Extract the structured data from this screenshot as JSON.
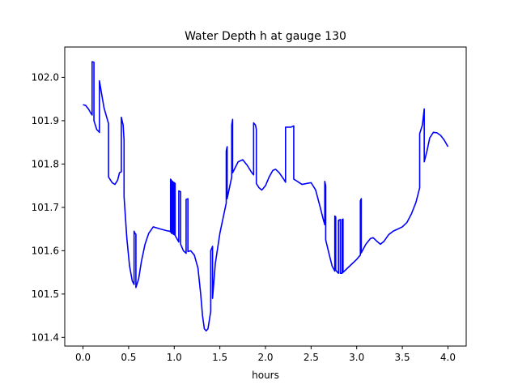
{
  "chart_data": {
    "type": "line",
    "title": "Water Depth h at gauge 130",
    "xlabel": "hours",
    "ylabel": "",
    "xlim": [
      -0.2,
      4.2
    ],
    "ylim": [
      101.38,
      102.07
    ],
    "xticks": [
      0.0,
      0.5,
      1.0,
      1.5,
      2.0,
      2.5,
      3.0,
      3.5,
      4.0
    ],
    "xtick_labels": [
      "0.0",
      "0.5",
      "1.0",
      "1.5",
      "2.0",
      "2.5",
      "3.0",
      "3.5",
      "4.0"
    ],
    "yticks": [
      101.4,
      101.5,
      101.6,
      101.7,
      101.8,
      101.9,
      102.0
    ],
    "ytick_labels": [
      "101.4",
      "101.5",
      "101.6",
      "101.7",
      "101.8",
      "101.9",
      "102.0"
    ],
    "grid": false,
    "series": [
      {
        "color": "#0000ff",
        "points": [
          [
            0.0,
            101.937
          ],
          [
            0.03,
            101.935
          ],
          [
            0.06,
            101.927
          ],
          [
            0.09,
            101.916
          ],
          [
            0.1,
            101.913
          ],
          [
            0.1,
            102.036
          ],
          [
            0.12,
            102.035
          ],
          [
            0.12,
            101.9
          ],
          [
            0.15,
            101.88
          ],
          [
            0.18,
            101.873
          ],
          [
            0.18,
            101.992
          ],
          [
            0.23,
            101.93
          ],
          [
            0.28,
            101.893
          ],
          [
            0.28,
            101.77
          ],
          [
            0.32,
            101.757
          ],
          [
            0.35,
            101.753
          ],
          [
            0.38,
            101.763
          ],
          [
            0.4,
            101.78
          ],
          [
            0.42,
            101.782
          ],
          [
            0.42,
            101.908
          ],
          [
            0.44,
            101.89
          ],
          [
            0.45,
            101.855
          ],
          [
            0.45,
            101.725
          ],
          [
            0.48,
            101.63
          ],
          [
            0.51,
            101.565
          ],
          [
            0.54,
            101.53
          ],
          [
            0.56,
            101.522
          ],
          [
            0.56,
            101.645
          ],
          [
            0.57,
            101.64
          ],
          [
            0.58,
            101.638
          ],
          [
            0.58,
            101.515
          ],
          [
            0.61,
            101.535
          ],
          [
            0.64,
            101.575
          ],
          [
            0.68,
            101.615
          ],
          [
            0.72,
            101.64
          ],
          [
            0.77,
            101.655
          ],
          [
            0.85,
            101.65
          ],
          [
            0.92,
            101.646
          ],
          [
            0.95,
            101.645
          ],
          [
            0.96,
            101.643
          ],
          [
            0.96,
            101.765
          ],
          [
            0.97,
            101.762
          ],
          [
            0.97,
            101.64
          ],
          [
            0.98,
            101.64
          ],
          [
            0.98,
            101.76
          ],
          [
            0.99,
            101.758
          ],
          [
            0.99,
            101.638
          ],
          [
            1.0,
            101.637
          ],
          [
            1.0,
            101.757
          ],
          [
            1.01,
            101.755
          ],
          [
            1.01,
            101.635
          ],
          [
            1.05,
            101.62
          ],
          [
            1.05,
            101.738
          ],
          [
            1.07,
            101.736
          ],
          [
            1.07,
            101.615
          ],
          [
            1.1,
            101.6
          ],
          [
            1.13,
            101.594
          ],
          [
            1.13,
            101.718
          ],
          [
            1.15,
            101.72
          ],
          [
            1.15,
            101.598
          ],
          [
            1.18,
            101.6
          ],
          [
            1.22,
            101.59
          ],
          [
            1.26,
            101.56
          ],
          [
            1.29,
            101.5
          ],
          [
            1.31,
            101.45
          ],
          [
            1.33,
            101.42
          ],
          [
            1.35,
            101.415
          ],
          [
            1.37,
            101.42
          ],
          [
            1.4,
            101.46
          ],
          [
            1.4,
            101.6
          ],
          [
            1.42,
            101.61
          ],
          [
            1.42,
            101.49
          ],
          [
            1.45,
            101.57
          ],
          [
            1.5,
            101.64
          ],
          [
            1.55,
            101.69
          ],
          [
            1.57,
            101.71
          ],
          [
            1.57,
            101.83
          ],
          [
            1.58,
            101.84
          ],
          [
            1.58,
            101.72
          ],
          [
            1.62,
            101.76
          ],
          [
            1.63,
            101.77
          ],
          [
            1.63,
            101.89
          ],
          [
            1.64,
            101.903
          ],
          [
            1.64,
            101.78
          ],
          [
            1.7,
            101.805
          ],
          [
            1.75,
            101.81
          ],
          [
            1.8,
            101.797
          ],
          [
            1.85,
            101.78
          ],
          [
            1.87,
            101.775
          ],
          [
            1.87,
            101.895
          ],
          [
            1.89,
            101.89
          ],
          [
            1.9,
            101.88
          ],
          [
            1.9,
            101.755
          ],
          [
            1.93,
            101.745
          ],
          [
            1.96,
            101.74
          ],
          [
            2.0,
            101.75
          ],
          [
            2.04,
            101.77
          ],
          [
            2.08,
            101.785
          ],
          [
            2.11,
            101.788
          ],
          [
            2.15,
            101.78
          ],
          [
            2.2,
            101.765
          ],
          [
            2.22,
            101.758
          ],
          [
            2.22,
            101.885
          ],
          [
            2.26,
            101.885
          ],
          [
            2.28,
            101.885
          ],
          [
            2.3,
            101.887
          ],
          [
            2.31,
            101.888
          ],
          [
            2.31,
            101.765
          ],
          [
            2.35,
            101.76
          ],
          [
            2.4,
            101.753
          ],
          [
            2.45,
            101.755
          ],
          [
            2.5,
            101.757
          ],
          [
            2.55,
            101.74
          ],
          [
            2.6,
            101.7
          ],
          [
            2.63,
            101.675
          ],
          [
            2.65,
            101.66
          ],
          [
            2.65,
            101.76
          ],
          [
            2.66,
            101.75
          ],
          [
            2.66,
            101.625
          ],
          [
            2.7,
            101.59
          ],
          [
            2.73,
            101.565
          ],
          [
            2.76,
            101.553
          ],
          [
            2.76,
            101.68
          ],
          [
            2.77,
            101.678
          ],
          [
            2.77,
            101.555
          ],
          [
            2.79,
            101.55
          ],
          [
            2.8,
            101.548
          ],
          [
            2.8,
            101.67
          ],
          [
            2.82,
            101.672
          ],
          [
            2.82,
            101.548
          ],
          [
            2.84,
            101.548
          ],
          [
            2.84,
            101.672
          ],
          [
            2.85,
            101.673
          ],
          [
            2.85,
            101.55
          ],
          [
            2.9,
            101.56
          ],
          [
            2.95,
            101.57
          ],
          [
            3.0,
            101.58
          ],
          [
            3.04,
            101.59
          ],
          [
            3.04,
            101.715
          ],
          [
            3.05,
            101.72
          ],
          [
            3.05,
            101.595
          ],
          [
            3.1,
            101.615
          ],
          [
            3.15,
            101.628
          ],
          [
            3.18,
            101.63
          ],
          [
            3.22,
            101.622
          ],
          [
            3.26,
            101.615
          ],
          [
            3.3,
            101.622
          ],
          [
            3.35,
            101.637
          ],
          [
            3.4,
            101.645
          ],
          [
            3.45,
            101.65
          ],
          [
            3.5,
            101.655
          ],
          [
            3.55,
            101.665
          ],
          [
            3.6,
            101.685
          ],
          [
            3.65,
            101.712
          ],
          [
            3.69,
            101.745
          ],
          [
            3.69,
            101.87
          ],
          [
            3.72,
            101.89
          ],
          [
            3.74,
            101.927
          ],
          [
            3.74,
            101.805
          ],
          [
            3.77,
            101.83
          ],
          [
            3.8,
            101.86
          ],
          [
            3.84,
            101.873
          ],
          [
            3.88,
            101.872
          ],
          [
            3.92,
            101.866
          ],
          [
            3.96,
            101.855
          ],
          [
            4.0,
            101.84
          ]
        ]
      }
    ]
  }
}
